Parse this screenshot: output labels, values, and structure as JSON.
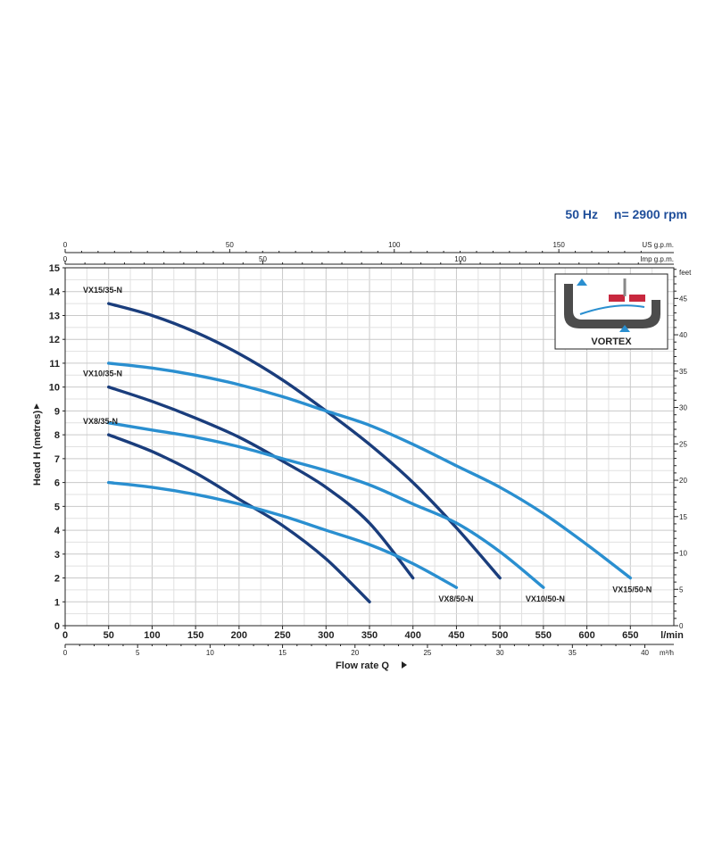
{
  "header": {
    "frequency": "50 Hz",
    "speed": "n= 2900 rpm"
  },
  "chart_data": {
    "type": "line",
    "xlabel": "Flow rate Q",
    "ylabel": "Head H (metres)",
    "x_unit": "l/min",
    "xlim": [
      0,
      700
    ],
    "ylim": [
      0,
      15
    ],
    "grid": true,
    "x_ticks": [
      0,
      50,
      100,
      150,
      200,
      250,
      300,
      350,
      400,
      450,
      500,
      550,
      600,
      650
    ],
    "y_ticks": [
      0,
      1,
      2,
      3,
      4,
      5,
      6,
      7,
      8,
      9,
      10,
      11,
      12,
      13,
      14,
      15
    ],
    "secondary_axes": {
      "us_gpm": {
        "label": "US g.p.m.",
        "ticks": [
          "0",
          "50",
          "100",
          "150"
        ]
      },
      "imp_gpm": {
        "label": "Imp g.p.m.",
        "ticks": [
          "0",
          "50",
          "100"
        ]
      },
      "m3h": {
        "label": "m³/h",
        "ticks": [
          "0",
          "5",
          "10",
          "15",
          "20",
          "25",
          "30",
          "35",
          "40"
        ]
      },
      "feet": {
        "label": "feet",
        "ticks": [
          "0",
          "5",
          "10",
          "15",
          "20",
          "25",
          "30",
          "35",
          "40",
          "45"
        ]
      }
    },
    "series": [
      {
        "name": "VX15/35-N",
        "color": "#1a3d7c",
        "x": [
          50,
          100,
          150,
          200,
          250,
          300,
          350,
          400,
          450,
          500
        ],
        "y": [
          13.5,
          13.0,
          12.3,
          11.4,
          10.3,
          9.0,
          7.6,
          6.0,
          4.1,
          2.0
        ]
      },
      {
        "name": "VX10/35-N",
        "color": "#1a3d7c",
        "x": [
          50,
          100,
          150,
          200,
          250,
          300,
          350,
          400
        ],
        "y": [
          10.0,
          9.4,
          8.7,
          7.9,
          6.9,
          5.8,
          4.3,
          2.0
        ]
      },
      {
        "name": "VX8/35-N",
        "color": "#1a3d7c",
        "x": [
          50,
          100,
          150,
          200,
          250,
          300,
          350
        ],
        "y": [
          8.0,
          7.3,
          6.4,
          5.3,
          4.2,
          2.8,
          1.0
        ]
      },
      {
        "name": "VX15/50-N",
        "color": "#2a8fd0",
        "x": [
          50,
          100,
          150,
          200,
          250,
          300,
          350,
          400,
          450,
          500,
          550,
          600,
          650
        ],
        "y": [
          11.0,
          10.8,
          10.5,
          10.1,
          9.6,
          9.0,
          8.4,
          7.6,
          6.7,
          5.8,
          4.7,
          3.4,
          2.0
        ]
      },
      {
        "name": "VX10/50-N",
        "color": "#2a8fd0",
        "x": [
          50,
          100,
          150,
          200,
          250,
          300,
          350,
          400,
          450,
          500,
          550
        ],
        "y": [
          8.5,
          8.2,
          7.9,
          7.5,
          7.0,
          6.5,
          5.9,
          5.1,
          4.3,
          3.1,
          1.6
        ]
      },
      {
        "name": "VX8/50-N",
        "color": "#2a8fd0",
        "x": [
          50,
          100,
          150,
          200,
          250,
          300,
          350,
          400,
          450
        ],
        "y": [
          6.0,
          5.8,
          5.5,
          5.1,
          4.6,
          4.0,
          3.4,
          2.6,
          1.6
        ]
      }
    ],
    "inset_label": "VORTEX"
  }
}
